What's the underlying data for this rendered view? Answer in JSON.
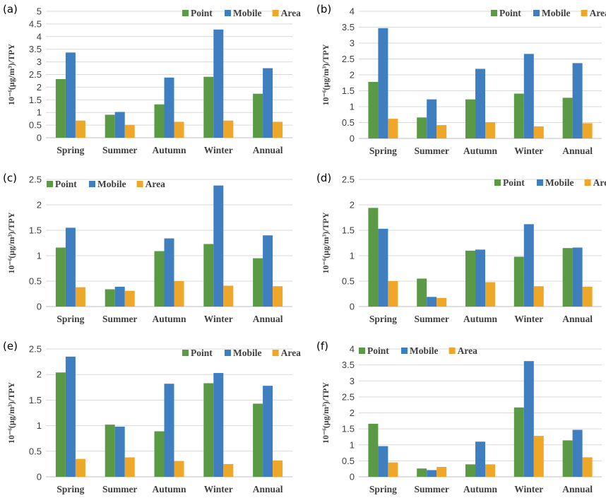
{
  "colors": {
    "Point": "#5b9a44",
    "Mobile": "#3f7fc0",
    "Area": "#eea728"
  },
  "chart_data": [
    {
      "panel": "(a)",
      "type": "bar",
      "categories": [
        "Spring",
        "Summer",
        "Autumn",
        "Winter",
        "Annual"
      ],
      "series": [
        {
          "name": "Point",
          "values": [
            2.32,
            0.91,
            1.32,
            2.41,
            1.74
          ]
        },
        {
          "name": "Mobile",
          "values": [
            3.37,
            1.02,
            2.38,
            4.28,
            2.75
          ]
        },
        {
          "name": "Area",
          "values": [
            0.68,
            0.51,
            0.63,
            0.68,
            0.63
          ]
        }
      ],
      "ylim": [
        0,
        5
      ],
      "yticks": [
        "0",
        "0.5",
        "1",
        "1.5",
        "2",
        "2.5",
        "3",
        "3.5",
        "4",
        "4.5",
        "5"
      ],
      "ylabel": "10⁻⁶(μg/m³)/TPY",
      "legend": "top-right"
    },
    {
      "panel": "(b)",
      "type": "bar",
      "categories": [
        "Spring",
        "Summer",
        "Autumn",
        "Winter",
        "Annual"
      ],
      "series": [
        {
          "name": "Point",
          "values": [
            1.78,
            0.66,
            1.23,
            1.41,
            1.28
          ]
        },
        {
          "name": "Mobile",
          "values": [
            3.47,
            1.23,
            2.19,
            2.66,
            2.37
          ]
        },
        {
          "name": "Area",
          "values": [
            0.62,
            0.42,
            0.51,
            0.38,
            0.48
          ]
        }
      ],
      "ylim": [
        0,
        4
      ],
      "yticks": [
        "0",
        "0.5",
        "1",
        "1.5",
        "2",
        "2.5",
        "3",
        "3.5",
        "4"
      ],
      "ylabel": "10⁻⁶(μg/m³)/TPY",
      "legend": "top-right"
    },
    {
      "panel": "(c)",
      "type": "bar",
      "categories": [
        "Spring",
        "Summer",
        "Autumn",
        "Winter",
        "Annual"
      ],
      "series": [
        {
          "name": "Point",
          "values": [
            1.16,
            0.34,
            1.09,
            1.23,
            0.95
          ]
        },
        {
          "name": "Mobile",
          "values": [
            1.55,
            0.39,
            1.34,
            2.38,
            1.4
          ]
        },
        {
          "name": "Area",
          "values": [
            0.38,
            0.31,
            0.5,
            0.41,
            0.4
          ]
        }
      ],
      "ylim": [
        0,
        2.5
      ],
      "yticks": [
        "0",
        "0.5",
        "1",
        "1.5",
        "2",
        "2.5"
      ],
      "ylabel": "10⁻⁶(μg/m³)/TPY",
      "legend": "top-left"
    },
    {
      "panel": "(d)",
      "type": "bar",
      "categories": [
        "Spring",
        "Summer",
        "Autumn",
        "Winter",
        "Annual"
      ],
      "series": [
        {
          "name": "Point",
          "values": [
            1.94,
            0.55,
            1.1,
            0.98,
            1.15
          ]
        },
        {
          "name": "Mobile",
          "values": [
            1.53,
            0.19,
            1.12,
            1.62,
            1.16
          ]
        },
        {
          "name": "Area",
          "values": [
            0.5,
            0.17,
            0.48,
            0.4,
            0.39
          ]
        }
      ],
      "ylim": [
        0,
        2.5
      ],
      "yticks": [
        "0",
        "0.5",
        "1",
        "1.5",
        "2",
        "2.5"
      ],
      "ylabel": "10⁻⁶(μg/m³)/TPY",
      "legend": "top-right"
    },
    {
      "panel": "(e)",
      "type": "bar",
      "categories": [
        "Spring",
        "Summer",
        "Autumn",
        "Winter",
        "Annual"
      ],
      "series": [
        {
          "name": "Point",
          "values": [
            2.04,
            1.02,
            0.89,
            1.83,
            1.43
          ]
        },
        {
          "name": "Mobile",
          "values": [
            2.35,
            0.98,
            1.82,
            2.03,
            1.78
          ]
        },
        {
          "name": "Area",
          "values": [
            0.35,
            0.38,
            0.31,
            0.25,
            0.32
          ]
        }
      ],
      "ylim": [
        0,
        2.5
      ],
      "yticks": [
        "0",
        "0.5",
        "1",
        "1.5",
        "2",
        "2.5"
      ],
      "ylabel": "10⁻⁶(μg/m³)/TPY",
      "legend": "top-right"
    },
    {
      "panel": "(f)",
      "type": "bar",
      "categories": [
        "Spring",
        "Summer",
        "Autumn",
        "Winter",
        "Annual"
      ],
      "series": [
        {
          "name": "Point",
          "values": [
            1.66,
            0.26,
            0.39,
            2.17,
            1.14
          ]
        },
        {
          "name": "Mobile",
          "values": [
            0.96,
            0.21,
            1.1,
            3.62,
            1.47
          ]
        },
        {
          "name": "Area",
          "values": [
            0.45,
            0.31,
            0.39,
            1.28,
            0.61
          ]
        }
      ],
      "ylim": [
        0,
        4
      ],
      "yticks": [
        "0",
        "0.5",
        "1",
        "1.5",
        "2",
        "2.5",
        "3",
        "3.5",
        "4"
      ],
      "ylabel": "10⁻⁶(μg/m³)/TPY",
      "legend": "top-left"
    }
  ]
}
